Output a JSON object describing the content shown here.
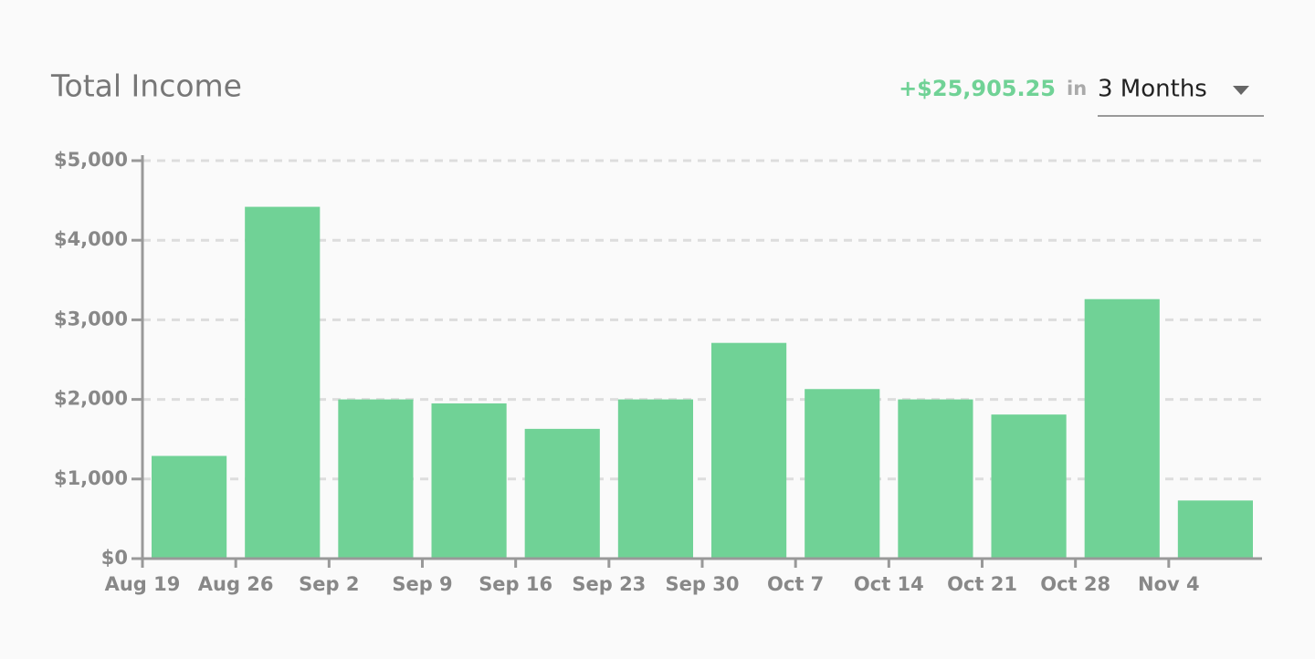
{
  "chart_data": {
    "type": "bar",
    "title": "Total Income",
    "summary": {
      "total": "+$25,905.25",
      "period_prefix": "in",
      "period": "3 Months"
    },
    "categories": [
      "Aug 19",
      "Aug 26",
      "Sep 2",
      "Sep 9",
      "Sep 16",
      "Sep 23",
      "Sep 30",
      "Oct 7",
      "Oct 14",
      "Oct 21",
      "Oct 28",
      "Nov 4"
    ],
    "values": [
      1290,
      4420,
      2000,
      1950,
      1630,
      2000,
      2710,
      2130,
      2000,
      1810,
      3260,
      730
    ],
    "color": "#70d296",
    "ylim": [
      0,
      5000
    ],
    "yticks": [
      {
        "value": 0,
        "label": "$0"
      },
      {
        "value": 1000,
        "label": "$1,000"
      },
      {
        "value": 2000,
        "label": "$2,000"
      },
      {
        "value": 3000,
        "label": "$3,000"
      },
      {
        "value": 4000,
        "label": "$4,000"
      },
      {
        "value": 5000,
        "label": "$5,000"
      }
    ],
    "grid": true
  }
}
